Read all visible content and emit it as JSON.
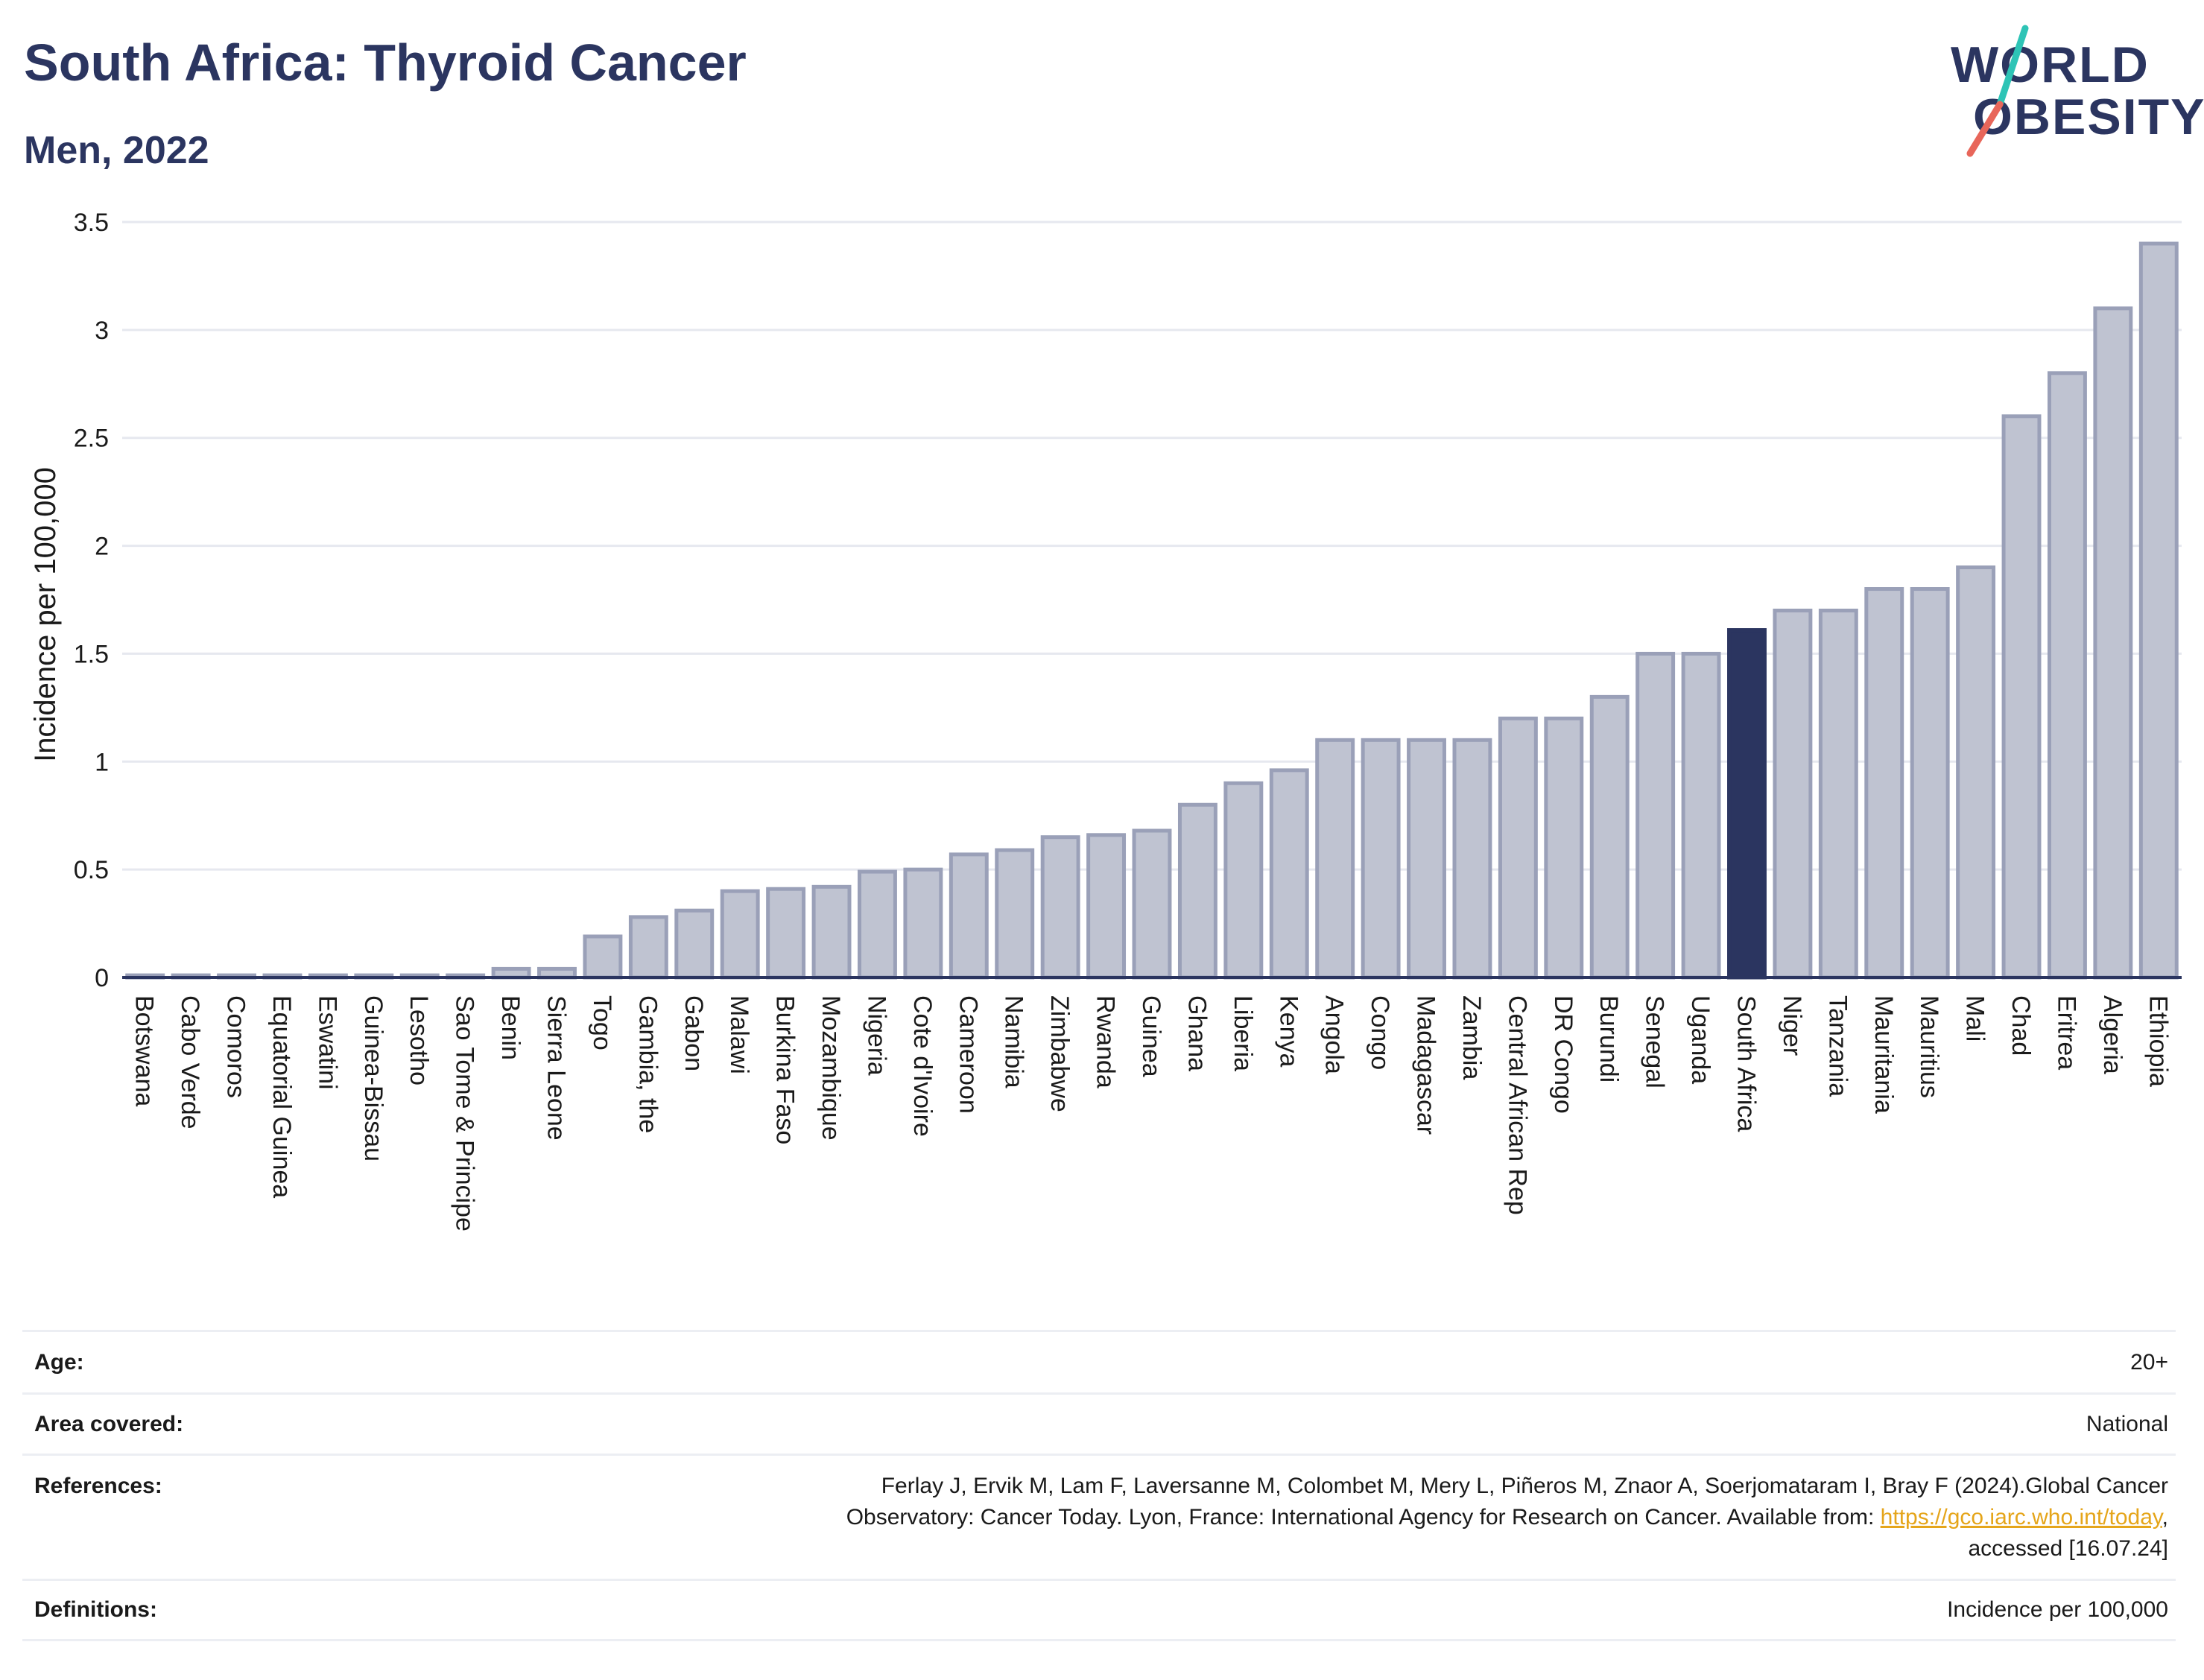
{
  "header": {
    "title": "South Africa: Thyroid Cancer",
    "subtitle": "Men, 2022"
  },
  "logo": {
    "line1": "WORLD",
    "line2": "OBESITY",
    "slash_colors": [
      "#2ec4b6",
      "#e8665a"
    ]
  },
  "colors": {
    "bar": "#bfc3d1",
    "bar_stroke": "#9aa0b8",
    "highlight": "#2b3560",
    "grid": "#e6e8ef",
    "axis": "#2b3560",
    "link": "#e5a51a"
  },
  "chart_data": {
    "type": "bar",
    "ylabel": "Incidence per 100,000",
    "ylim": [
      0,
      3.5
    ],
    "yticks": [
      "0",
      "0.5",
      "1",
      "1.5",
      "2",
      "2.5",
      "3",
      "3.5"
    ],
    "ytick_values": [
      0,
      0.5,
      1,
      1.5,
      2,
      2.5,
      3,
      3.5
    ],
    "grid": true,
    "highlight": "South Africa",
    "categories": [
      "Botswana",
      "Cabo Verde",
      "Comoros",
      "Equatorial Guinea",
      "Eswatini",
      "Guinea-Bissau",
      "Lesotho",
      "Sao Tome & Principe",
      "Benin",
      "Sierra Leone",
      "Togo",
      "Gambia, the",
      "Gabon",
      "Malawi",
      "Burkina Faso",
      "Mozambique",
      "Nigeria",
      "Cote d'Ivoire",
      "Cameroon",
      "Namibia",
      "Zimbabwe",
      "Rwanda",
      "Guinea",
      "Ghana",
      "Liberia",
      "Kenya",
      "Angola",
      "Congo",
      "Madagascar",
      "Zambia",
      "Central African Rep",
      "DR Congo",
      "Burundi",
      "Senegal",
      "Uganda",
      "South Africa",
      "Niger",
      "Tanzania",
      "Mauritania",
      "Mauritius",
      "Mali",
      "Chad",
      "Eritrea",
      "Algeria",
      "Ethiopia"
    ],
    "values": [
      0.01,
      0.01,
      0.01,
      0.01,
      0.01,
      0.01,
      0.01,
      0.01,
      0.04,
      0.04,
      0.19,
      0.28,
      0.31,
      0.4,
      0.41,
      0.42,
      0.49,
      0.5,
      0.57,
      0.59,
      0.65,
      0.66,
      0.68,
      0.8,
      0.9,
      0.96,
      1.1,
      1.1,
      1.1,
      1.1,
      1.2,
      1.2,
      1.3,
      1.5,
      1.5,
      1.61,
      1.7,
      1.7,
      1.8,
      1.8,
      1.9,
      2.6,
      2.8,
      3.1,
      3.4
    ]
  },
  "meta": {
    "age": {
      "label": "Age:",
      "value": "20+"
    },
    "area": {
      "label": "Area covered:",
      "value": "National"
    },
    "references": {
      "label": "References:",
      "line1": "Ferlay J, Ervik M, Lam F, Laversanne M, Colombet M, Mery L, Piñeros M, Znaor A, Soerjomataram I, Bray F (2024).Global Cancer",
      "line2_pre": "Observatory: Cancer Today. Lyon, France: International Agency for Research on Cancer. Available from: ",
      "link": "https://gco.iarc.who.int/today",
      "line2_post": ",",
      "line3": "accessed [16.07.24]"
    },
    "definitions": {
      "label": "Definitions:",
      "value": "Incidence per 100,000"
    }
  }
}
